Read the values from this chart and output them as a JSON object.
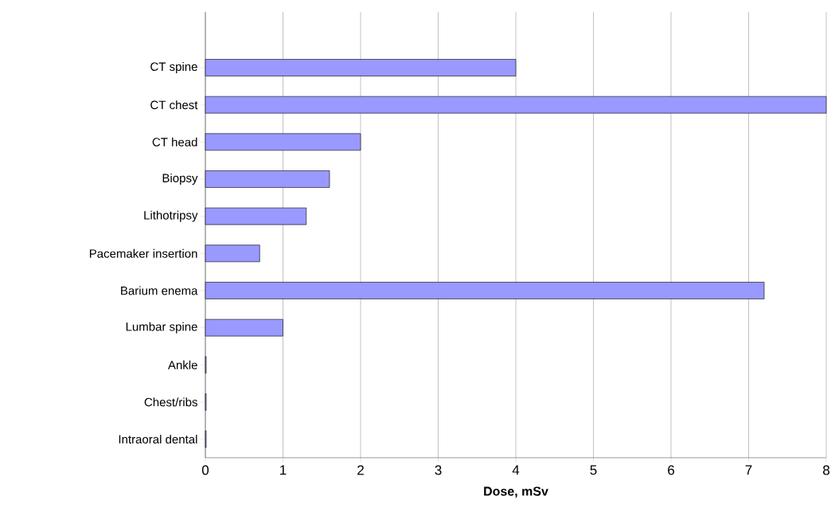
{
  "chart_data": {
    "type": "bar",
    "orientation": "horizontal",
    "xlabel": "Dose, mSv",
    "categories": [
      "CT spine",
      "CT chest",
      "CT head",
      "Biopsy",
      "Lithotripsy",
      "Pacemaker insertion",
      "Barium enema",
      "Lumbar spine",
      "Ankle",
      "Chest/ribs",
      "Intraoral dental"
    ],
    "values": [
      4.0,
      8.0,
      2.0,
      1.6,
      1.3,
      0.7,
      7.2,
      1.0,
      0.01,
      0.01,
      0.01
    ],
    "color": "#9999ff",
    "xlim": [
      0,
      8
    ],
    "xticks": [
      0,
      1,
      2,
      3,
      4,
      5,
      6,
      7,
      8
    ],
    "grid": "x"
  }
}
